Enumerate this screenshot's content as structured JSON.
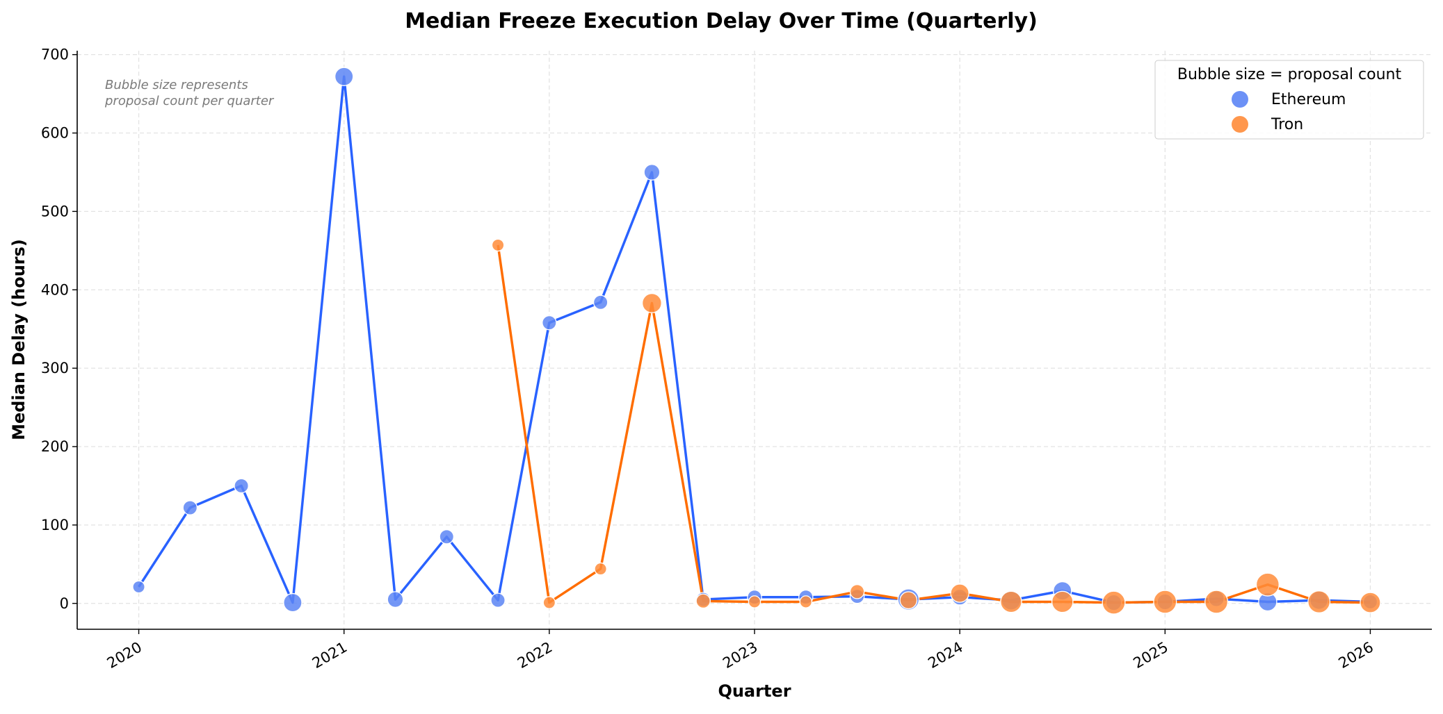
{
  "chart_data": {
    "type": "line",
    "title": "Median Freeze Execution Delay Over Time (Quarterly)",
    "xlabel": "Quarter",
    "ylabel": "Median Delay (hours)",
    "annotation": [
      "Bubble size represents",
      "proposal count per quarter"
    ],
    "legend": {
      "title": "Bubble size = proposal count",
      "placement": "top-right"
    },
    "xlim": [
      2019.7,
      2026.3
    ],
    "ylim": [
      -33,
      705
    ],
    "xticks": [
      "2020",
      "2021",
      "2022",
      "2023",
      "2024",
      "2025",
      "2026"
    ],
    "yticks": [
      "0",
      "100",
      "200",
      "300",
      "400",
      "500",
      "600",
      "700"
    ],
    "grid": true,
    "series": [
      {
        "name": "Ethereum",
        "color": "#2962ff",
        "marker_color": "#5c85f5",
        "x": [
          "2020-Q1",
          "2020-Q2",
          "2020-Q3",
          "2020-Q4",
          "2021-Q1",
          "2021-Q2",
          "2021-Q3",
          "2021-Q4",
          "2022-Q1",
          "2022-Q2",
          "2022-Q3",
          "2022-Q4",
          "2023-Q1",
          "2023-Q2",
          "2023-Q3",
          "2023-Q4",
          "2024-Q1",
          "2024-Q2",
          "2024-Q3",
          "2024-Q4",
          "2025-Q1",
          "2025-Q2",
          "2025-Q3",
          "2025-Q4",
          "2026-Q1"
        ],
        "values": [
          21,
          122,
          150,
          1,
          672,
          5,
          85,
          4,
          358,
          384,
          550,
          5,
          8,
          8,
          9,
          5,
          8,
          4,
          16,
          1,
          2,
          6,
          2,
          4,
          2
        ],
        "counts": [
          1,
          2,
          2,
          5,
          5,
          3,
          2,
          2,
          2,
          2,
          3,
          2,
          2,
          2,
          2,
          8,
          3,
          6,
          5,
          3,
          3,
          3,
          5,
          5,
          2
        ]
      },
      {
        "name": "Tron",
        "color": "#ff6d00",
        "marker_color": "#ff8c3a",
        "x": [
          "2021-Q4",
          "2022-Q1",
          "2022-Q2",
          "2022-Q3",
          "2022-Q4",
          "2023-Q1",
          "2023-Q2",
          "2023-Q3",
          "2023-Q4",
          "2024-Q1",
          "2024-Q2",
          "2024-Q3",
          "2024-Q4",
          "2025-Q1",
          "2025-Q2",
          "2025-Q3",
          "2025-Q4",
          "2026-Q1"
        ],
        "values": [
          457,
          1,
          44,
          383,
          3,
          2,
          2,
          15,
          4,
          13,
          2,
          2,
          1,
          2,
          2,
          24,
          2,
          1
        ],
        "counts": [
          1,
          1,
          1,
          6,
          2,
          1,
          1,
          2,
          4,
          5,
          8,
          8,
          10,
          10,
          10,
          10,
          9,
          7
        ]
      }
    ]
  }
}
